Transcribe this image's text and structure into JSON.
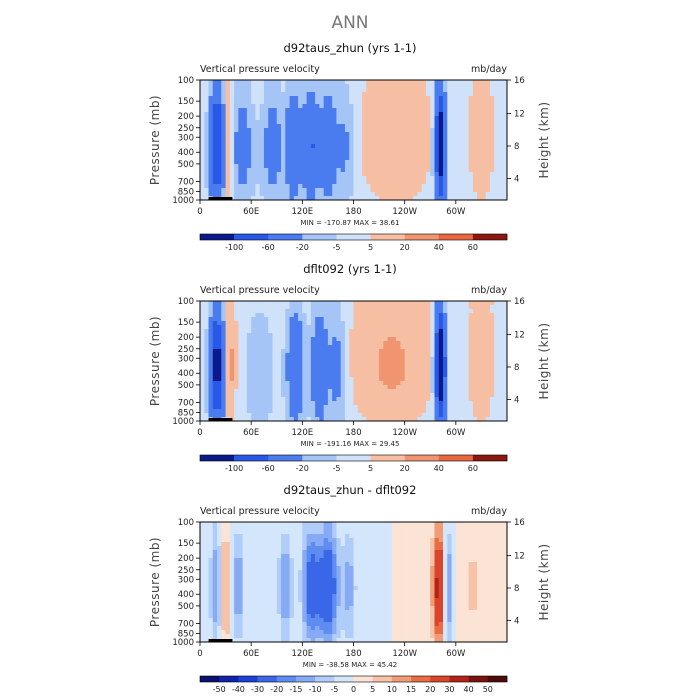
{
  "title": "ANN",
  "units": "mb/day",
  "variable": "Vertical pressure velocity",
  "colors": {
    "cb11": [
      "#0a1a8c",
      "#1730c8",
      "#2a58e6",
      "#4a7cf0",
      "#7ba4f4",
      "#a6c5f7",
      "#cfe2fa",
      "#fbe1d4",
      "#f6bfa4",
      "#f0956f",
      "#e8673f",
      "#c93a1e",
      "#8c1710"
    ],
    "cb12": [
      "#0a1a8c",
      "#1730c8",
      "#2a58e6",
      "#4a7cf0",
      "#7ba4f4",
      "#a6c5f7",
      "#cfe2fa",
      "#fbe1d4",
      "#f6bfa4",
      "#f0956f",
      "#e8673f",
      "#c93a1e",
      "#8c1710"
    ]
  },
  "panels": [
    {
      "id": "p1",
      "title": "d92taus_zhun (yrs 1-1)",
      "subtitle_left": "Vertical pressure velocity",
      "subtitle_right": "mb/day",
      "stats": "MIN = -170.87   MAX =  38.61",
      "cb_labels": [
        "-100",
        "-60",
        "-20",
        "-5",
        "5",
        "20",
        "40",
        "60"
      ]
    },
    {
      "id": "p2",
      "title": "dflt092 (yrs 1-1)",
      "subtitle_left": "Vertical pressure velocity",
      "subtitle_right": "mb/day",
      "stats": "MIN = -191.16   MAX =  29.45",
      "cb_labels": [
        "-100",
        "-60",
        "-20",
        "-5",
        "5",
        "20",
        "40",
        "60"
      ]
    },
    {
      "id": "p3",
      "title": "d92taus_zhun - dflt092",
      "subtitle_left": "Vertical pressure velocity",
      "subtitle_right": "mb/day",
      "stats": "MIN = -38.58   MAX =  45.42",
      "cb_labels": [
        "-50",
        "-40",
        "-30",
        "-20",
        "-15",
        "-10",
        "-5",
        "0",
        "5",
        "10",
        "15",
        "20",
        "30",
        "40",
        "50"
      ]
    }
  ],
  "chart_data": [
    {
      "type": "heatmap",
      "title": "d92taus_zhun (yrs 1-1)",
      "ylabel": "Pressure (mb)",
      "y2label": "Height (km)",
      "xticks": [
        "0",
        "60E",
        "120E",
        "180",
        "120W",
        "60W"
      ],
      "yticks": [
        "100",
        "150",
        "200",
        "250",
        "300",
        "400",
        "500",
        "700",
        "850",
        "1000"
      ],
      "y2ticks": [
        "16",
        "12",
        "8",
        "4"
      ],
      "min": -170.87,
      "max": 38.61,
      "contour_levels": [
        -100,
        -60,
        -20,
        -5,
        5,
        20,
        40,
        60
      ],
      "features": [
        {
          "lon": 20,
          "halfwidth": 8,
          "value": -110
        },
        {
          "lon": 33,
          "halfwidth": 5,
          "value": 30
        },
        {
          "lon": 50,
          "halfwidth": 12,
          "value": -35
        },
        {
          "lon": 85,
          "halfwidth": 12,
          "value": -35
        },
        {
          "lon": 110,
          "halfwidth": 9,
          "value": -55
        },
        {
          "lon": 130,
          "halfwidth": 8,
          "value": -65
        },
        {
          "lon": 150,
          "halfwidth": 10,
          "value": -50
        },
        {
          "lon": 170,
          "halfwidth": 10,
          "value": -25
        },
        {
          "lon": 230,
          "halfwidth": 35,
          "value": 18
        },
        {
          "lon": 282,
          "halfwidth": 6,
          "value": -140
        },
        {
          "lon": 330,
          "halfwidth": 12,
          "value": 15
        }
      ]
    },
    {
      "type": "heatmap",
      "title": "dflt092 (yrs 1-1)",
      "ylabel": "Pressure (mb)",
      "y2label": "Height (km)",
      "xticks": [
        "0",
        "60E",
        "120E",
        "180",
        "120W",
        "60W"
      ],
      "yticks": [
        "100",
        "150",
        "200",
        "250",
        "300",
        "400",
        "500",
        "700",
        "850",
        "1000"
      ],
      "y2ticks": [
        "16",
        "12",
        "8",
        "4"
      ],
      "min": -191.16,
      "max": 29.45,
      "contour_levels": [
        -100,
        -60,
        -20,
        -5,
        5,
        20,
        40,
        60
      ],
      "features": [
        {
          "lon": 20,
          "halfwidth": 8,
          "value": -120
        },
        {
          "lon": 35,
          "halfwidth": 6,
          "value": 25
        },
        {
          "lon": 70,
          "halfwidth": 14,
          "value": -22
        },
        {
          "lon": 112,
          "halfwidth": 10,
          "value": -55
        },
        {
          "lon": 140,
          "halfwidth": 9,
          "value": -55
        },
        {
          "lon": 160,
          "halfwidth": 10,
          "value": -30
        },
        {
          "lon": 225,
          "halfwidth": 40,
          "value": 22
        },
        {
          "lon": 282,
          "halfwidth": 6,
          "value": -150
        },
        {
          "lon": 330,
          "halfwidth": 12,
          "value": 18
        }
      ]
    },
    {
      "type": "heatmap",
      "title": "d92taus_zhun - dflt092",
      "ylabel": "Pressure (mb)",
      "y2label": "Height (km)",
      "xticks": [
        "0",
        "60E",
        "120E",
        "180",
        "120W",
        "60W"
      ],
      "yticks": [
        "100",
        "150",
        "200",
        "250",
        "300",
        "400",
        "500",
        "700",
        "850",
        "1000"
      ],
      "y2ticks": [
        "16",
        "12",
        "8",
        "4"
      ],
      "min": -38.58,
      "max": 45.42,
      "contour_levels": [
        -50,
        -40,
        -30,
        -20,
        -15,
        -10,
        -5,
        0,
        5,
        10,
        15,
        20,
        30,
        40,
        50
      ],
      "features": [
        {
          "lon": 18,
          "halfwidth": 6,
          "value": -15
        },
        {
          "lon": 30,
          "halfwidth": 4,
          "value": 15
        },
        {
          "lon": 45,
          "halfwidth": 6,
          "value": -15
        },
        {
          "lon": 100,
          "halfwidth": 8,
          "value": -15
        },
        {
          "lon": 130,
          "halfwidth": 10,
          "value": -25
        },
        {
          "lon": 150,
          "halfwidth": 12,
          "value": -30
        },
        {
          "lon": 175,
          "halfwidth": 8,
          "value": -12
        },
        {
          "lon": 280,
          "halfwidth": 7,
          "value": 35
        },
        {
          "lon": 290,
          "halfwidth": 5,
          "value": -20
        },
        {
          "lon": 320,
          "halfwidth": 15,
          "value": 6
        }
      ]
    }
  ]
}
